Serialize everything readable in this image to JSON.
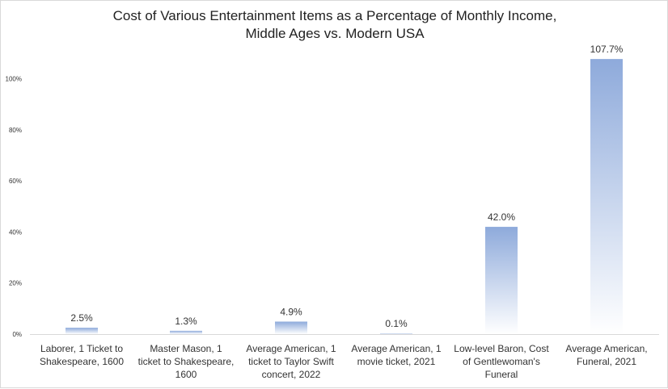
{
  "chart_data": {
    "type": "bar",
    "title_lines": [
      "Cost of Various Entertainment Items as a Percentage of Monthly Income,",
      "Middle Ages vs. Modern USA"
    ],
    "categories": [
      [
        "Laborer, 1 Ticket to",
        "Shakespeare, 1600"
      ],
      [
        "Master Mason, 1",
        "ticket to Shakespeare,",
        "1600"
      ],
      [
        "Average American, 1",
        "ticket to Taylor Swift",
        "concert, 2022"
      ],
      [
        "Average American, 1",
        "movie ticket, 2021"
      ],
      [
        "Low-level Baron, Cost",
        "of Gentlewoman's",
        "Funeral"
      ],
      [
        "Average American,",
        "Funeral, 2021"
      ]
    ],
    "values": [
      2.5,
      1.3,
      4.9,
      0.1,
      42.0,
      107.7
    ],
    "data_labels": [
      "2.5%",
      "1.3%",
      "4.9%",
      "0.1%",
      "42.0%",
      "107.7%"
    ],
    "y_ticks": [
      0,
      20,
      40,
      60,
      80,
      100
    ],
    "y_tick_labels": [
      "0%",
      "20%",
      "40%",
      "60%",
      "80%",
      "100%"
    ],
    "ylim": [
      0,
      120
    ],
    "grid": false,
    "legend": "none",
    "colors": {
      "bar_top": "#8eaadb",
      "bar_bottom": "#ffffff",
      "text": "#333333",
      "axis": "#d9d9d9"
    }
  }
}
